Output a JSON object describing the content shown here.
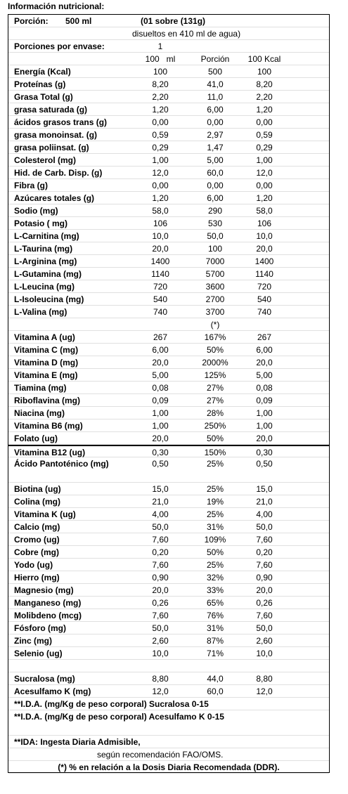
{
  "title": "Información nutricional:",
  "portion": {
    "label": "Porción:",
    "amount": "500 ml",
    "sachet": "(01 sobre (131g)",
    "dilution": "disueltos en 410 ml de agua)"
  },
  "servings": {
    "label": "Porciones por envase:",
    "value": "1"
  },
  "columns": [
    "100   ml",
    "Porción",
    "100 Kcal"
  ],
  "macros": [
    [
      "Energía (Kcal)",
      "100",
      "500",
      "100"
    ],
    [
      "Proteínas (g)",
      "8,20",
      "41,0",
      "8,20"
    ],
    [
      "Grasa Total (g)",
      "2,20",
      "11,0",
      "2,20"
    ],
    [
      "grasa saturada (g)",
      "1,20",
      "6,00",
      "1,20"
    ],
    [
      "ácidos grasos trans (g)",
      "0,00",
      "0,00",
      "0,00"
    ],
    [
      "grasa monoinsat. (g)",
      "0,59",
      "2,97",
      "0,59"
    ],
    [
      "grasa poliinsat. (g)",
      "0,29",
      "1,47",
      "0,29"
    ],
    [
      "Colesterol (mg)",
      "1,00",
      "5,00",
      "1,00"
    ],
    [
      "Hid. de Carb. Disp. (g)",
      "12,0",
      "60,0",
      "12,0"
    ],
    [
      "Fibra (g)",
      "0,00",
      "0,00",
      "0,00"
    ],
    [
      "Azúcares totales (g)",
      "1,20",
      "6,00",
      "1,20"
    ],
    [
      "Sodio (mg)",
      "58,0",
      "290",
      "58,0"
    ],
    [
      "Potasio ( mg)",
      "106",
      "530",
      "106"
    ],
    [
      "L-Carnitina (mg)",
      "10,0",
      "50,0",
      "10,0"
    ],
    [
      "L-Taurina (mg)",
      "20,0",
      "100",
      "20,0"
    ],
    [
      "L-Arginina (mg)",
      "1400",
      "7000",
      "1400"
    ],
    [
      "L-Gutamina (mg)",
      "1140",
      "5700",
      "1140"
    ],
    [
      "L-Leucina  (mg)",
      "720",
      "3600",
      "720"
    ],
    [
      "L-Isoleucina (mg)",
      "540",
      "2700",
      "540"
    ],
    [
      "L-Valina (mg)",
      "740",
      "3700",
      "740"
    ]
  ],
  "star_note": "(*)",
  "micros": [
    [
      "Vitamina A (ug)",
      "267",
      "167%",
      "267"
    ],
    [
      "Vitamina C (mg)",
      "6,00",
      "50%",
      "6,00"
    ],
    [
      "Vitamina D (mg)",
      "20,0",
      "2000%",
      "20,0"
    ],
    [
      "Vitamina E (mg)",
      "5,00",
      "125%",
      "5,00"
    ],
    [
      "Tiamina (mg)",
      "0,08",
      "27%",
      "0,08"
    ],
    [
      "Riboflavina (mg)",
      "0,09",
      "27%",
      "0,09"
    ],
    [
      "Niacina (mg)",
      "1,00",
      "28%",
      "1,00"
    ],
    [
      "Vitamina B6 (mg)",
      "1,00",
      "250%",
      "1,00"
    ],
    [
      "Folato (ug)",
      "20,0",
      "50%",
      "20,0"
    ],
    [
      "Vitamina B12 (ug)",
      "0,30",
      "150%",
      "0,30"
    ],
    [
      "Ácido Pantoténico (mg)",
      "0,50",
      "25%",
      "0,50"
    ],
    [
      "Biotina (ug)",
      "15,0",
      "25%",
      "15,0"
    ],
    [
      "Colina (mg)",
      "21,0",
      "19%",
      "21,0"
    ],
    [
      "Vitamina K (ug)",
      "4,00",
      "25%",
      "4,00"
    ],
    [
      "Calcio (mg)",
      "50,0",
      "31%",
      "50,0"
    ],
    [
      "Cromo (ug)",
      "7,60",
      "109%",
      "7,60"
    ],
    [
      "Cobre (mg)",
      "0,20",
      "50%",
      "0,20"
    ],
    [
      "Yodo (ug)",
      "7,60",
      "25%",
      "7,60"
    ],
    [
      "Hierro (mg)",
      "0,90",
      "32%",
      "0,90"
    ],
    [
      "Magnesio (mg)",
      "20,0",
      "33%",
      "20,0"
    ],
    [
      "Manganeso (mg)",
      "0,26",
      "65%",
      "0,26"
    ],
    [
      "Molibdeno (mcg)",
      "7,60",
      "76%",
      "7,60"
    ],
    [
      "Fósforo (mg)",
      "50,0",
      "31%",
      "50,0"
    ],
    [
      "Zinc  (mg)",
      "2,60",
      "87%",
      "2,60"
    ],
    [
      "Selenio (ug)",
      "10,0",
      "71%",
      "10,0"
    ]
  ],
  "sweeteners": [
    [
      "Sucralosa (mg)",
      "8,80",
      "44,0",
      "8,80"
    ],
    [
      "Acesulfamo K (mg)",
      "12,0",
      "60,0",
      "12,0"
    ]
  ],
  "footnotes": [
    "**I.D.A. (mg/Kg de peso corporal)  Sucralosa 0-15",
    "**I.D.A. (mg/Kg de peso corporal)  Acesulfamo K 0-15",
    "**IDA: Ingesta Diaria Admisible,",
    "según recomendación FAO/OMS.",
    "(*) % en relación a la Dosis Diaria Recomendada (DDR)."
  ]
}
